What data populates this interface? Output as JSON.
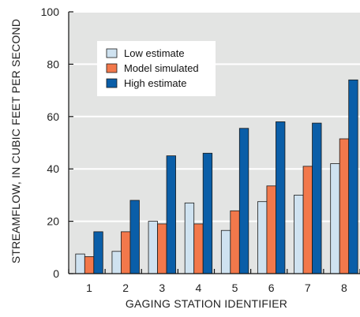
{
  "chart_data": {
    "type": "bar",
    "xlabel": "GAGING STATION IDENTIFIER",
    "ylabel": "STREAMFLOW, IN CUBIC FEET PER SECOND",
    "ylim": [
      0,
      100
    ],
    "yticks": [
      0,
      20,
      40,
      60,
      80,
      100
    ],
    "categories": [
      "1",
      "2",
      "3",
      "4",
      "5",
      "6",
      "7",
      "8"
    ],
    "series": [
      {
        "name": "Low estimate",
        "color": "#cfe2f0",
        "values": [
          7.5,
          8.5,
          20,
          27,
          16.5,
          27.5,
          30,
          42
        ]
      },
      {
        "name": "Model simulated",
        "color": "#f2784b",
        "values": [
          6.5,
          16,
          19,
          19,
          24,
          33.5,
          41,
          51.5
        ]
      },
      {
        "name": "High estimate",
        "color": "#0a5ea8",
        "values": [
          16,
          28,
          45,
          46,
          55.5,
          58,
          57.5,
          74
        ]
      }
    ],
    "grid": "horizontal",
    "legend_position": "upper-left inside plot",
    "plot_background": "#e3e4e3",
    "bar_outline": "#1a1a1a"
  }
}
